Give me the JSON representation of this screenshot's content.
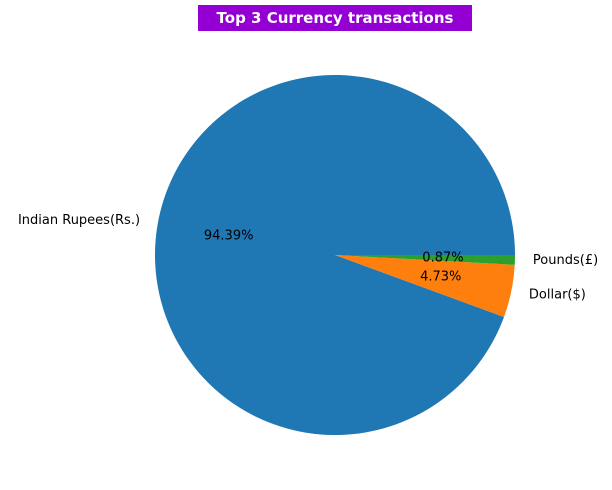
{
  "chart_data": {
    "type": "pie",
    "title": "Top 3 Currency transactions",
    "title_background": "#9400d3",
    "title_color": "#ffffff",
    "start_angle_deg": 0,
    "direction": "counterclockwise",
    "slices": [
      {
        "label": "Indian Rupees(Rs.)",
        "value": 94.39,
        "pct_label": "94.39%",
        "color": "#1f77b4"
      },
      {
        "label": "Dollar($)",
        "value": 4.73,
        "pct_label": "4.73%",
        "color": "#ff7f0e"
      },
      {
        "label": "Pounds(£)",
        "value": 0.87,
        "pct_label": "0.87%",
        "color": "#2ca02c"
      }
    ]
  }
}
